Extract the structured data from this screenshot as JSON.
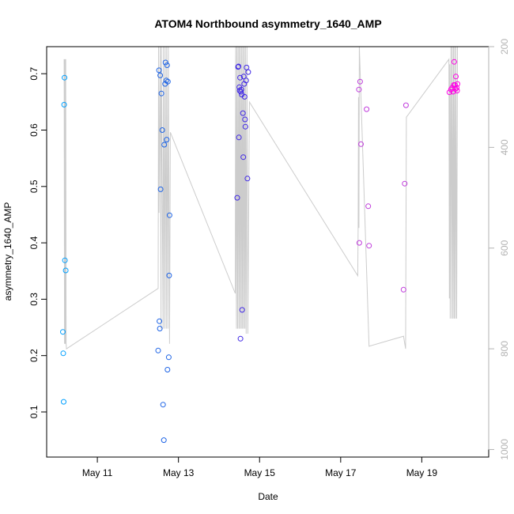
{
  "chart_data": {
    "type": "scatter",
    "title": "ATOM4 Northbound asymmetry_1640_AMP",
    "xlabel": "Date",
    "ylabel": "asymmetry_1640_AMP",
    "xlim": [
      9.75,
      20.65
    ],
    "ylim": [
      0.02,
      0.748
    ],
    "y2lim": [
      200,
      1015
    ],
    "x_ticks": [
      {
        "value": 11,
        "label": "May 11"
      },
      {
        "value": 13,
        "label": "May 13"
      },
      {
        "value": 15,
        "label": "May 15"
      },
      {
        "value": 17,
        "label": "May 17"
      },
      {
        "value": 19,
        "label": "May 19"
      }
    ],
    "y_ticks": [
      0.1,
      0.2,
      0.3,
      0.4,
      0.5,
      0.6,
      0.7
    ],
    "y2_ticks": [
      200,
      400,
      600,
      800,
      1000
    ],
    "series": [
      {
        "name": "asymmetry_1640_AMP",
        "points": [
          {
            "x": 10.15,
            "y": 0.242,
            "color": "#00a0ff"
          },
          {
            "x": 10.16,
            "y": 0.204,
            "color": "#00a0ff"
          },
          {
            "x": 10.17,
            "y": 0.118,
            "color": "#00a0ff"
          },
          {
            "x": 10.18,
            "y": 0.645,
            "color": "#00a0ff"
          },
          {
            "x": 10.19,
            "y": 0.693,
            "color": "#00a0ff"
          },
          {
            "x": 10.2,
            "y": 0.369,
            "color": "#00a0ff"
          },
          {
            "x": 10.22,
            "y": 0.351,
            "color": "#00a0ff"
          },
          {
            "x": 12.5,
            "y": 0.209,
            "color": "#1e64e6"
          },
          {
            "x": 12.52,
            "y": 0.706,
            "color": "#1e64e6"
          },
          {
            "x": 12.53,
            "y": 0.261,
            "color": "#1e64e6"
          },
          {
            "x": 12.54,
            "y": 0.248,
            "color": "#1e64e6"
          },
          {
            "x": 12.55,
            "y": 0.697,
            "color": "#1e64e6"
          },
          {
            "x": 12.56,
            "y": 0.495,
            "color": "#1e64e6"
          },
          {
            "x": 12.58,
            "y": 0.665,
            "color": "#1e64e6"
          },
          {
            "x": 12.6,
            "y": 0.6,
            "color": "#1e64e6"
          },
          {
            "x": 12.62,
            "y": 0.113,
            "color": "#1e64e6"
          },
          {
            "x": 12.64,
            "y": 0.05,
            "color": "#1e64e6"
          },
          {
            "x": 12.65,
            "y": 0.574,
            "color": "#1e64e6"
          },
          {
            "x": 12.67,
            "y": 0.682,
            "color": "#1e64e6"
          },
          {
            "x": 12.68,
            "y": 0.72,
            "color": "#1e64e6"
          },
          {
            "x": 12.7,
            "y": 0.688,
            "color": "#1e64e6"
          },
          {
            "x": 12.71,
            "y": 0.583,
            "color": "#1e64e6"
          },
          {
            "x": 12.72,
            "y": 0.715,
            "color": "#1e64e6"
          },
          {
            "x": 12.73,
            "y": 0.175,
            "color": "#1e64e6"
          },
          {
            "x": 12.74,
            "y": 0.686,
            "color": "#1e64e6"
          },
          {
            "x": 12.76,
            "y": 0.197,
            "color": "#1e64e6"
          },
          {
            "x": 12.77,
            "y": 0.342,
            "color": "#1e64e6"
          },
          {
            "x": 12.78,
            "y": 0.449,
            "color": "#1e64e6"
          },
          {
            "x": 14.45,
            "y": 0.48,
            "color": "#4028e6"
          },
          {
            "x": 14.47,
            "y": 0.712,
            "color": "#4028e6"
          },
          {
            "x": 14.48,
            "y": 0.713,
            "color": "#4028e6"
          },
          {
            "x": 14.49,
            "y": 0.587,
            "color": "#4028e6"
          },
          {
            "x": 14.5,
            "y": 0.676,
            "color": "#4028e6"
          },
          {
            "x": 14.51,
            "y": 0.67,
            "color": "#4028e6"
          },
          {
            "x": 14.52,
            "y": 0.693,
            "color": "#4028e6"
          },
          {
            "x": 14.53,
            "y": 0.23,
            "color": "#4028e6"
          },
          {
            "x": 14.54,
            "y": 0.668,
            "color": "#4028e6"
          },
          {
            "x": 14.55,
            "y": 0.672,
            "color": "#4028e6"
          },
          {
            "x": 14.56,
            "y": 0.663,
            "color": "#4028e6"
          },
          {
            "x": 14.57,
            "y": 0.281,
            "color": "#4028e6"
          },
          {
            "x": 14.59,
            "y": 0.63,
            "color": "#4028e6"
          },
          {
            "x": 14.6,
            "y": 0.552,
            "color": "#4028e6"
          },
          {
            "x": 14.61,
            "y": 0.695,
            "color": "#4028e6"
          },
          {
            "x": 14.62,
            "y": 0.682,
            "color": "#4028e6"
          },
          {
            "x": 14.63,
            "y": 0.659,
            "color": "#4028e6"
          },
          {
            "x": 14.64,
            "y": 0.619,
            "color": "#4028e6"
          },
          {
            "x": 14.65,
            "y": 0.606,
            "color": "#4028e6"
          },
          {
            "x": 14.67,
            "y": 0.688,
            "color": "#4028e6"
          },
          {
            "x": 14.68,
            "y": 0.711,
            "color": "#4028e6"
          },
          {
            "x": 14.7,
            "y": 0.514,
            "color": "#4028e6"
          },
          {
            "x": 14.72,
            "y": 0.703,
            "color": "#4028e6"
          },
          {
            "x": 17.45,
            "y": 0.672,
            "color": "#c03cdc"
          },
          {
            "x": 17.46,
            "y": 0.4,
            "color": "#c03cdc"
          },
          {
            "x": 17.48,
            "y": 0.686,
            "color": "#c03cdc"
          },
          {
            "x": 17.5,
            "y": 0.575,
            "color": "#c03cdc"
          },
          {
            "x": 17.64,
            "y": 0.637,
            "color": "#c03cdc"
          },
          {
            "x": 17.68,
            "y": 0.465,
            "color": "#c03cdc"
          },
          {
            "x": 17.7,
            "y": 0.395,
            "color": "#c03cdc"
          },
          {
            "x": 18.55,
            "y": 0.317,
            "color": "#c03cdc"
          },
          {
            "x": 18.58,
            "y": 0.505,
            "color": "#c03cdc"
          },
          {
            "x": 18.61,
            "y": 0.644,
            "color": "#c03cdc"
          },
          {
            "x": 19.68,
            "y": 0.667,
            "color": "#ff00e6"
          },
          {
            "x": 19.72,
            "y": 0.672,
            "color": "#ff00e6"
          },
          {
            "x": 19.75,
            "y": 0.675,
            "color": "#ff00e6"
          },
          {
            "x": 19.77,
            "y": 0.668,
            "color": "#ff00e6"
          },
          {
            "x": 19.79,
            "y": 0.68,
            "color": "#ff00e6"
          },
          {
            "x": 19.8,
            "y": 0.721,
            "color": "#ff00e6"
          },
          {
            "x": 19.82,
            "y": 0.68,
            "color": "#ff00e6"
          },
          {
            "x": 19.83,
            "y": 0.673,
            "color": "#ff00e6"
          },
          {
            "x": 19.84,
            "y": 0.695,
            "color": "#ff00e6"
          },
          {
            "x": 19.86,
            "y": 0.675,
            "color": "#ff00e6"
          },
          {
            "x": 19.87,
            "y": 0.67,
            "color": "#ff00e6"
          },
          {
            "x": 19.88,
            "y": 0.682,
            "color": "#ff00e6"
          }
        ]
      },
      {
        "name": "secondary",
        "axis": "right",
        "color": "#cccccc",
        "points": [
          {
            "x": 10.18,
            "y": 225
          },
          {
            "x": 10.19,
            "y": 790
          },
          {
            "x": 10.2,
            "y": 225
          },
          {
            "x": 10.21,
            "y": 790
          },
          {
            "x": 10.22,
            "y": 225
          },
          {
            "x": 10.23,
            "y": 790
          },
          {
            "x": 10.24,
            "y": 800
          },
          {
            "x": 12.5,
            "y": 680
          },
          {
            "x": 12.51,
            "y": 200
          },
          {
            "x": 12.52,
            "y": 530
          },
          {
            "x": 12.55,
            "y": 200
          },
          {
            "x": 12.57,
            "y": 760
          },
          {
            "x": 12.58,
            "y": 200
          },
          {
            "x": 12.62,
            "y": 760
          },
          {
            "x": 12.63,
            "y": 200
          },
          {
            "x": 12.66,
            "y": 760
          },
          {
            "x": 12.67,
            "y": 200
          },
          {
            "x": 12.7,
            "y": 760
          },
          {
            "x": 12.71,
            "y": 200
          },
          {
            "x": 12.74,
            "y": 760
          },
          {
            "x": 12.75,
            "y": 200
          },
          {
            "x": 12.78,
            "y": 790
          },
          {
            "x": 12.8,
            "y": 370
          },
          {
            "x": 14.4,
            "y": 690
          },
          {
            "x": 14.41,
            "y": 200
          },
          {
            "x": 14.43,
            "y": 760
          },
          {
            "x": 14.44,
            "y": 200
          },
          {
            "x": 14.46,
            "y": 760
          },
          {
            "x": 14.47,
            "y": 200
          },
          {
            "x": 14.49,
            "y": 760
          },
          {
            "x": 14.5,
            "y": 200
          },
          {
            "x": 14.52,
            "y": 760
          },
          {
            "x": 14.53,
            "y": 200
          },
          {
            "x": 14.55,
            "y": 760
          },
          {
            "x": 14.56,
            "y": 200
          },
          {
            "x": 14.58,
            "y": 760
          },
          {
            "x": 14.59,
            "y": 200
          },
          {
            "x": 14.61,
            "y": 760
          },
          {
            "x": 14.62,
            "y": 200
          },
          {
            "x": 14.64,
            "y": 760
          },
          {
            "x": 14.65,
            "y": 200
          },
          {
            "x": 14.67,
            "y": 770
          },
          {
            "x": 14.69,
            "y": 200
          },
          {
            "x": 14.71,
            "y": 770
          },
          {
            "x": 14.75,
            "y": 310
          },
          {
            "x": 17.42,
            "y": 655
          },
          {
            "x": 17.43,
            "y": 560
          },
          {
            "x": 17.44,
            "y": 300
          },
          {
            "x": 17.45,
            "y": 560
          },
          {
            "x": 17.46,
            "y": 200
          },
          {
            "x": 17.7,
            "y": 795
          },
          {
            "x": 18.55,
            "y": 775
          },
          {
            "x": 18.6,
            "y": 800
          },
          {
            "x": 18.62,
            "y": 340
          },
          {
            "x": 19.67,
            "y": 225
          },
          {
            "x": 19.68,
            "y": 700
          },
          {
            "x": 19.69,
            "y": 235
          },
          {
            "x": 19.7,
            "y": 740
          },
          {
            "x": 19.72,
            "y": 200
          },
          {
            "x": 19.74,
            "y": 740
          },
          {
            "x": 19.75,
            "y": 200
          },
          {
            "x": 19.77,
            "y": 740
          },
          {
            "x": 19.78,
            "y": 200
          },
          {
            "x": 19.8,
            "y": 740
          },
          {
            "x": 19.81,
            "y": 200
          },
          {
            "x": 19.83,
            "y": 740
          },
          {
            "x": 19.84,
            "y": 200
          },
          {
            "x": 19.86,
            "y": 740
          },
          {
            "x": 19.88,
            "y": 200
          }
        ]
      }
    ]
  }
}
